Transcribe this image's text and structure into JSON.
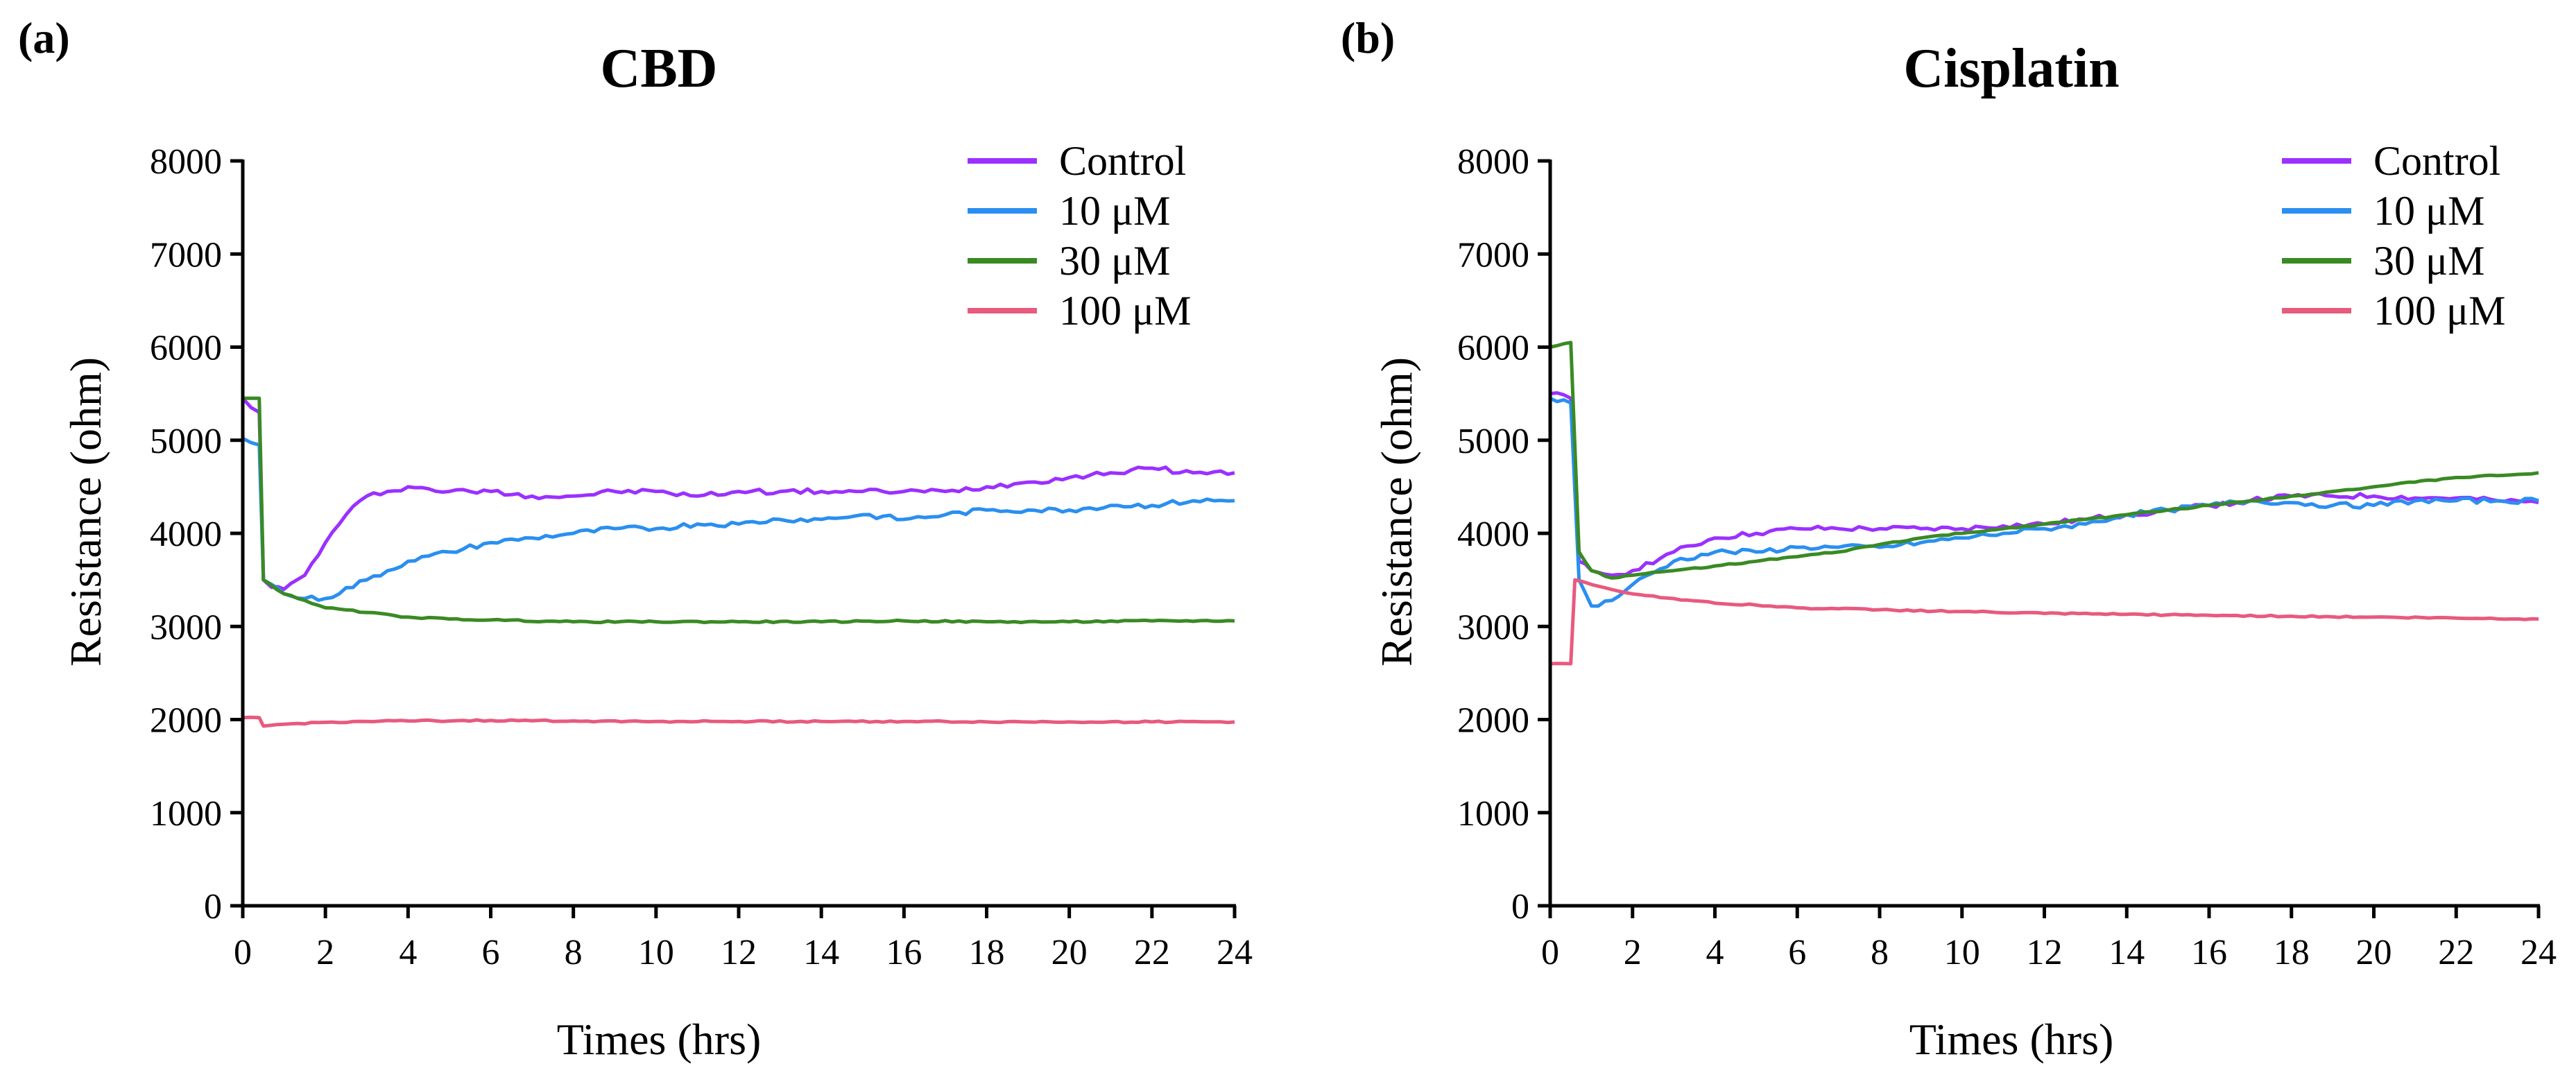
{
  "figure": {
    "panels": [
      {
        "letter": "(a)"
      },
      {
        "letter": "(b)"
      }
    ]
  },
  "chart_data": [
    {
      "type": "line",
      "title": "CBD",
      "xlabel": "Times (hrs)",
      "ylabel": "Resistance (ohm)",
      "xlim": [
        0,
        24
      ],
      "ylim": [
        0,
        8000
      ],
      "xticks": [
        0,
        2,
        4,
        6,
        8,
        10,
        12,
        14,
        16,
        18,
        20,
        22,
        24
      ],
      "yticks": [
        0,
        1000,
        2000,
        3000,
        4000,
        5000,
        6000,
        7000,
        8000
      ],
      "legend_position": "top-right",
      "series": [
        {
          "name": "Control",
          "color": "#9b30ff",
          "points": [
            [
              0,
              5450
            ],
            [
              0.4,
              5300
            ],
            [
              0.5,
              3500
            ],
            [
              0.7,
              3420
            ],
            [
              1,
              3400
            ],
            [
              1.5,
              3550
            ],
            [
              2,
              3900
            ],
            [
              2.5,
              4200
            ],
            [
              3,
              4400
            ],
            [
              3.5,
              4450
            ],
            [
              4,
              4500
            ],
            [
              5,
              4450
            ],
            [
              6,
              4450
            ],
            [
              7,
              4400
            ],
            [
              8,
              4400
            ],
            [
              9,
              4450
            ],
            [
              10,
              4450
            ],
            [
              11,
              4400
            ],
            [
              12,
              4450
            ],
            [
              13,
              4450
            ],
            [
              14,
              4450
            ],
            [
              15,
              4450
            ],
            [
              16,
              4450
            ],
            [
              17,
              4450
            ],
            [
              18,
              4500
            ],
            [
              19,
              4550
            ],
            [
              20,
              4600
            ],
            [
              21,
              4650
            ],
            [
              22,
              4700
            ],
            [
              23,
              4650
            ],
            [
              24,
              4650
            ]
          ]
        },
        {
          "name": "10 μM",
          "color": "#2a8ff0",
          "points": [
            [
              0,
              5020
            ],
            [
              0.4,
              4950
            ],
            [
              0.5,
              3500
            ],
            [
              0.7,
              3450
            ],
            [
              1,
              3350
            ],
            [
              1.5,
              3300
            ],
            [
              2,
              3300
            ],
            [
              3,
              3500
            ],
            [
              4,
              3700
            ],
            [
              5,
              3800
            ],
            [
              6,
              3900
            ],
            [
              7,
              3950
            ],
            [
              8,
              4000
            ],
            [
              9,
              4050
            ],
            [
              10,
              4050
            ],
            [
              11,
              4100
            ],
            [
              12,
              4100
            ],
            [
              13,
              4150
            ],
            [
              14,
              4150
            ],
            [
              15,
              4200
            ],
            [
              16,
              4150
            ],
            [
              17,
              4200
            ],
            [
              18,
              4250
            ],
            [
              19,
              4250
            ],
            [
              20,
              4250
            ],
            [
              21,
              4300
            ],
            [
              22,
              4300
            ],
            [
              23,
              4350
            ],
            [
              24,
              4350
            ]
          ]
        },
        {
          "name": "30 μM",
          "color": "#3a8a24",
          "points": [
            [
              0,
              5450
            ],
            [
              0.4,
              5450
            ],
            [
              0.5,
              3500
            ],
            [
              1,
              3350
            ],
            [
              1.5,
              3280
            ],
            [
              2,
              3200
            ],
            [
              3,
              3150
            ],
            [
              4,
              3100
            ],
            [
              5,
              3080
            ],
            [
              6,
              3070
            ],
            [
              8,
              3050
            ],
            [
              10,
              3050
            ],
            [
              12,
              3050
            ],
            [
              14,
              3050
            ],
            [
              16,
              3060
            ],
            [
              18,
              3050
            ],
            [
              20,
              3050
            ],
            [
              22,
              3060
            ],
            [
              24,
              3060
            ]
          ]
        },
        {
          "name": "100 μM",
          "color": "#e85a7e",
          "points": [
            [
              0,
              2020
            ],
            [
              0.4,
              2020
            ],
            [
              0.5,
              1930
            ],
            [
              1,
              1950
            ],
            [
              2,
              1970
            ],
            [
              3,
              1980
            ],
            [
              4,
              1985
            ],
            [
              6,
              1990
            ],
            [
              8,
              1985
            ],
            [
              10,
              1980
            ],
            [
              12,
              1980
            ],
            [
              14,
              1980
            ],
            [
              16,
              1980
            ],
            [
              18,
              1975
            ],
            [
              20,
              1975
            ],
            [
              22,
              1975
            ],
            [
              24,
              1975
            ]
          ]
        }
      ]
    },
    {
      "type": "line",
      "title": "Cisplatin",
      "xlabel": "Times (hrs)",
      "ylabel": "Resistance (ohm)",
      "xlim": [
        0,
        24
      ],
      "ylim": [
        0,
        8000
      ],
      "xticks": [
        0,
        2,
        4,
        6,
        8,
        10,
        12,
        14,
        16,
        18,
        20,
        22,
        24
      ],
      "yticks": [
        0,
        1000,
        2000,
        3000,
        4000,
        5000,
        6000,
        7000,
        8000
      ],
      "legend_position": "top-right",
      "series": [
        {
          "name": "Control",
          "color": "#9b30ff",
          "points": [
            [
              0,
              5500
            ],
            [
              0.5,
              5450
            ],
            [
              0.7,
              3700
            ],
            [
              1,
              3600
            ],
            [
              1.5,
              3550
            ],
            [
              2,
              3600
            ],
            [
              3,
              3800
            ],
            [
              4,
              3950
            ],
            [
              5,
              4000
            ],
            [
              6,
              4050
            ],
            [
              7,
              4050
            ],
            [
              8,
              4050
            ],
            [
              9,
              4050
            ],
            [
              10,
              4050
            ],
            [
              11,
              4080
            ],
            [
              12,
              4100
            ],
            [
              13,
              4150
            ],
            [
              14,
              4200
            ],
            [
              15,
              4250
            ],
            [
              16,
              4300
            ],
            [
              17,
              4350
            ],
            [
              18,
              4400
            ],
            [
              19,
              4400
            ],
            [
              20,
              4400
            ],
            [
              21,
              4380
            ],
            [
              22,
              4380
            ],
            [
              23,
              4350
            ],
            [
              24,
              4330
            ]
          ]
        },
        {
          "name": "10 μM",
          "color": "#2a8ff0",
          "points": [
            [
              0,
              5450
            ],
            [
              0.5,
              5400
            ],
            [
              0.7,
              3500
            ],
            [
              1,
              3220
            ],
            [
              1.5,
              3280
            ],
            [
              2,
              3450
            ],
            [
              3,
              3700
            ],
            [
              4,
              3800
            ],
            [
              5,
              3800
            ],
            [
              6,
              3850
            ],
            [
              7,
              3850
            ],
            [
              8,
              3850
            ],
            [
              9,
              3900
            ],
            [
              10,
              3950
            ],
            [
              11,
              4000
            ],
            [
              12,
              4050
            ],
            [
              13,
              4100
            ],
            [
              14,
              4200
            ],
            [
              15,
              4250
            ],
            [
              16,
              4300
            ],
            [
              17,
              4350
            ],
            [
              18,
              4330
            ],
            [
              19,
              4300
            ],
            [
              20,
              4300
            ],
            [
              21,
              4350
            ],
            [
              22,
              4350
            ],
            [
              23,
              4350
            ],
            [
              24,
              4350
            ]
          ]
        },
        {
          "name": "30 μM",
          "color": "#3a8a24",
          "points": [
            [
              0,
              6000
            ],
            [
              0.5,
              6050
            ],
            [
              0.7,
              3800
            ],
            [
              1,
              3600
            ],
            [
              1.5,
              3520
            ],
            [
              2,
              3550
            ],
            [
              3,
              3600
            ],
            [
              4,
              3650
            ],
            [
              5,
              3700
            ],
            [
              6,
              3750
            ],
            [
              7,
              3800
            ],
            [
              8,
              3880
            ],
            [
              9,
              3950
            ],
            [
              10,
              4000
            ],
            [
              11,
              4050
            ],
            [
              12,
              4100
            ],
            [
              13,
              4150
            ],
            [
              14,
              4200
            ],
            [
              15,
              4250
            ],
            [
              16,
              4300
            ],
            [
              17,
              4350
            ],
            [
              18,
              4400
            ],
            [
              19,
              4450
            ],
            [
              20,
              4500
            ],
            [
              21,
              4550
            ],
            [
              22,
              4600
            ],
            [
              23,
              4620
            ],
            [
              24,
              4650
            ]
          ]
        },
        {
          "name": "100 μM",
          "color": "#e85a7e",
          "points": [
            [
              0,
              2600
            ],
            [
              0.5,
              2600
            ],
            [
              0.6,
              3500
            ],
            [
              1,
              3450
            ],
            [
              2,
              3350
            ],
            [
              3,
              3300
            ],
            [
              4,
              3250
            ],
            [
              5,
              3230
            ],
            [
              6,
              3200
            ],
            [
              8,
              3180
            ],
            [
              10,
              3160
            ],
            [
              12,
              3140
            ],
            [
              14,
              3130
            ],
            [
              16,
              3120
            ],
            [
              18,
              3110
            ],
            [
              20,
              3100
            ],
            [
              22,
              3090
            ],
            [
              24,
              3080
            ]
          ]
        }
      ]
    }
  ]
}
